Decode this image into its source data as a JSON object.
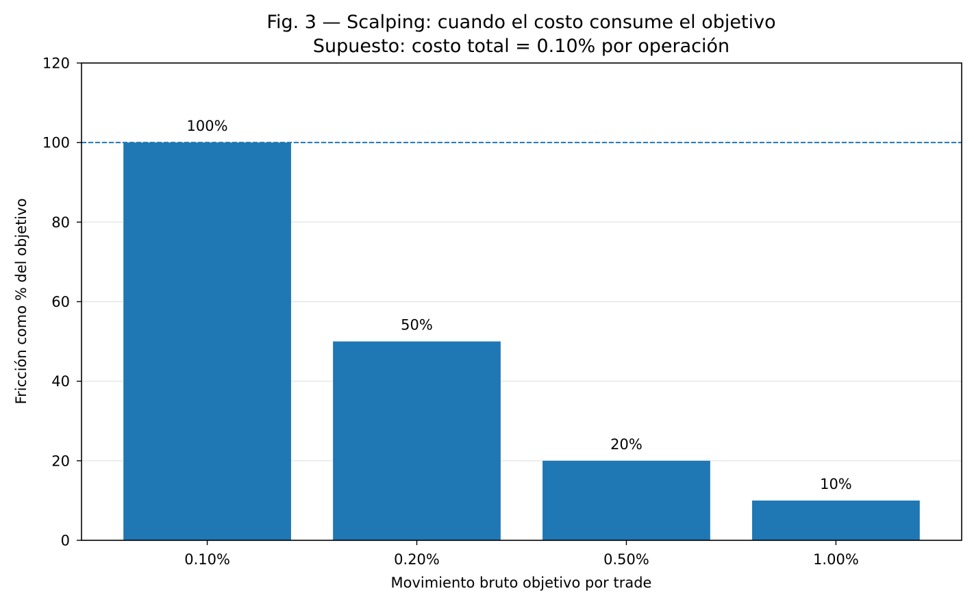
{
  "chart_data": {
    "type": "bar",
    "title": "Fig. 3 — Scalping: cuando el costo consume el objetivo",
    "subtitle": "Supuesto: costo total = 0.10% por operación",
    "xlabel": "Movimiento bruto objetivo por trade",
    "ylabel": "Fricción como % del objetivo",
    "categories": [
      "0.10%",
      "0.20%",
      "0.50%",
      "1.00%"
    ],
    "values": [
      100,
      50,
      20,
      10
    ],
    "data_labels": [
      "100%",
      "50%",
      "20%",
      "10%"
    ],
    "ylim": [
      0,
      120
    ],
    "yticks": [
      0,
      20,
      40,
      60,
      80,
      100,
      120
    ],
    "reference_line": {
      "y": 100,
      "style": "dashed",
      "color": "#1f77b4"
    },
    "grid": {
      "y": true,
      "x": false
    },
    "colors": {
      "bar": "#1f77b4",
      "grid": "#e6e6e6"
    }
  }
}
